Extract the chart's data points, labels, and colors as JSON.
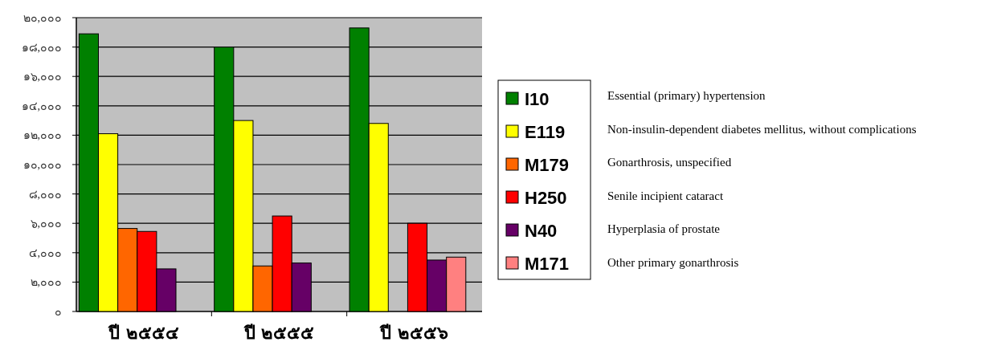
{
  "chart_data": {
    "type": "bar",
    "categories": [
      "ปี ๒๕๕๔",
      "ปี ๒๕๕๕",
      "ปี ๒๕๕๖"
    ],
    "series": [
      {
        "name": "I10",
        "color": "#008000",
        "values": [
          18900,
          18000,
          19300
        ]
      },
      {
        "name": "E119",
        "color": "#ffff00",
        "values": [
          12100,
          13000,
          12800
        ]
      },
      {
        "name": "M179",
        "color": "#ff6600",
        "values": [
          5650,
          3100,
          0
        ]
      },
      {
        "name": "H250",
        "color": "#ff0000",
        "values": [
          5450,
          6500,
          6000
        ]
      },
      {
        "name": "N40",
        "color": "#660066",
        "values": [
          2900,
          3300,
          3500
        ]
      },
      {
        "name": "M171",
        "color": "#ff8080",
        "values": [
          0,
          0,
          3700
        ]
      }
    ],
    "ylim": [
      0,
      20000
    ],
    "yticks": [
      {
        "value": 0,
        "label": "๐"
      },
      {
        "value": 2000,
        "label": "๒,๐๐๐"
      },
      {
        "value": 4000,
        "label": "๔,๐๐๐"
      },
      {
        "value": 6000,
        "label": "๖,๐๐๐"
      },
      {
        "value": 8000,
        "label": "๘,๐๐๐"
      },
      {
        "value": 10000,
        "label": "๑๐,๐๐๐"
      },
      {
        "value": 12000,
        "label": "๑๒,๐๐๐"
      },
      {
        "value": 14000,
        "label": "๑๔,๐๐๐"
      },
      {
        "value": 16000,
        "label": "๑๖,๐๐๐"
      },
      {
        "value": 18000,
        "label": "๑๘,๐๐๐"
      },
      {
        "value": 20000,
        "label": "๒๐,๐๐๐"
      }
    ],
    "grid": "y",
    "legend": "right",
    "annotations": [
      "Essential (primary) hypertension",
      "Non-insulin-dependent diabetes mellitus, without complications",
      "Gonarthrosis, unspecified",
      "Senile incipient cataract",
      "Hyperplasia of prostate",
      "Other primary gonarthrosis"
    ]
  }
}
